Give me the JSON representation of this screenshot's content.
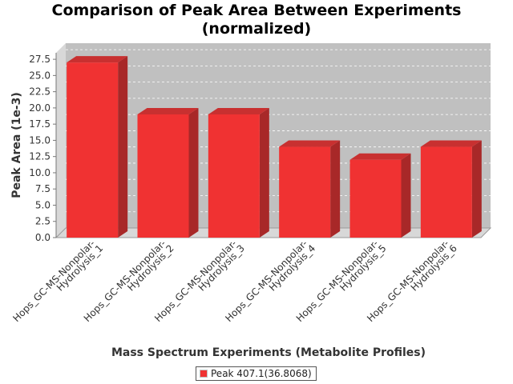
{
  "chart_data": {
    "type": "bar",
    "title_lines": [
      "Comparison of Peak Area Between Experiments",
      "(normalized)"
    ],
    "xlabel": "Mass Spectrum Experiments (Metabolite Profiles)",
    "ylabel": "Peak Area (1e-3)",
    "categories": [
      [
        "Hops_GC-MS-Nonpolar-",
        "Hydrolysis_1"
      ],
      [
        "Hops_GC-MS-Nonpolar-",
        "Hydrolysis_2"
      ],
      [
        "Hops_GC-MS-Nonpolar-",
        "Hydrolysis_3"
      ],
      [
        "Hops_GC-MS-Nonpolar-",
        "Hydrolysis_4"
      ],
      [
        "Hops_GC-MS-Nonpolar-",
        "Hydrolysis_5"
      ],
      [
        "Hops_GC-MS-Nonpolar-",
        "Hydrolysis_6"
      ]
    ],
    "series": [
      {
        "name": "Peak 407.1(36.8068)",
        "values": [
          27.0,
          19.0,
          19.0,
          14.0,
          12.0,
          14.0
        ]
      }
    ],
    "yticks": [
      "0.0",
      "2.5",
      "5.0",
      "7.5",
      "10.0",
      "12.5",
      "15.0",
      "17.5",
      "20.0",
      "22.5",
      "25.0",
      "27.5"
    ],
    "ylim": [
      0,
      28.5
    ],
    "grid": true,
    "legend_position": "bottom",
    "colors": {
      "bar": "#f03232",
      "bar_top": "#c83030",
      "bar_side": "#a82828",
      "plot_bg": "#c0c0c0"
    }
  }
}
